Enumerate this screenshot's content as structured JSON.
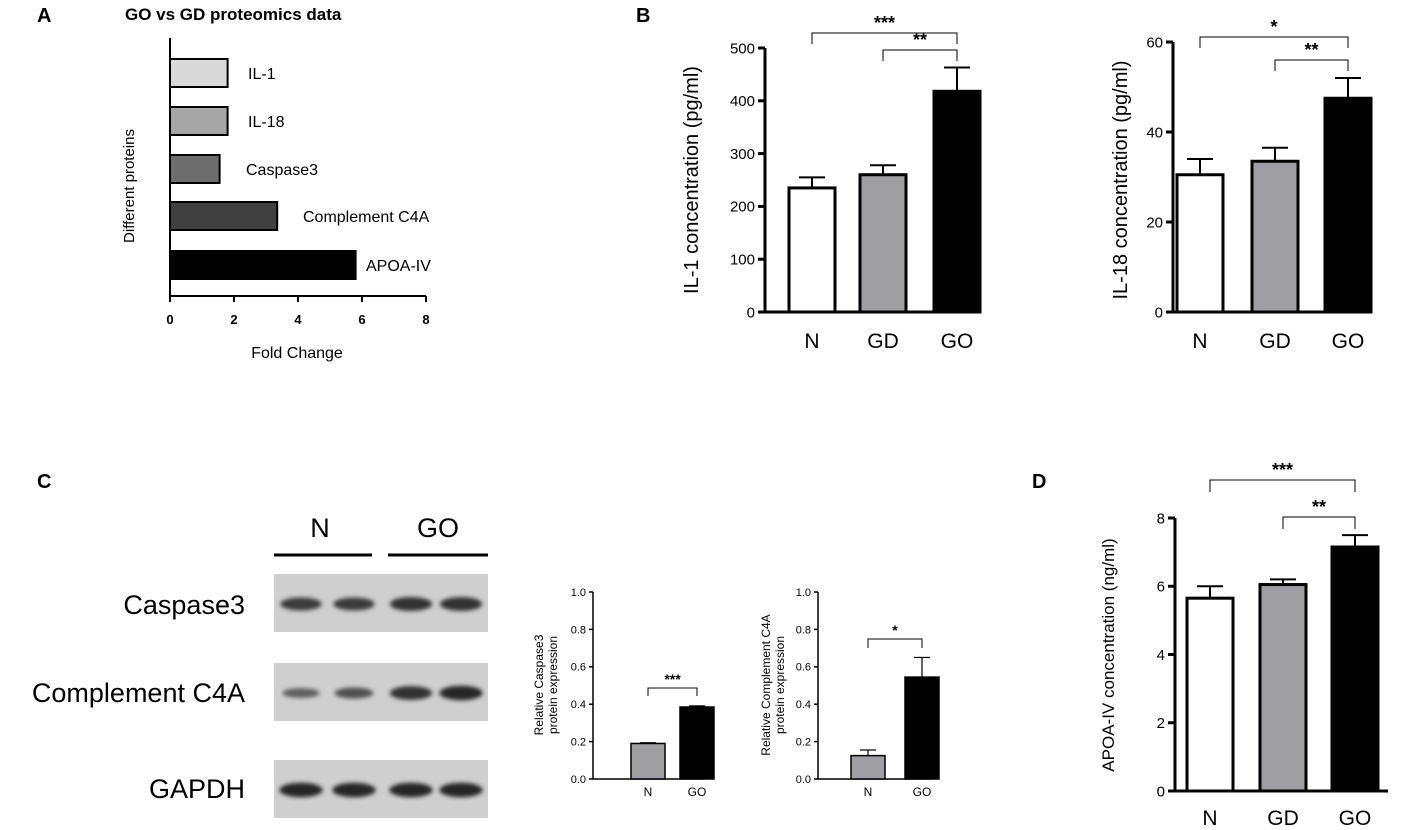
{
  "panels": {
    "A": "A",
    "B": "B",
    "C": "C",
    "D": "D"
  },
  "chart_data": [
    {
      "id": "A",
      "type": "bar",
      "orientation": "horizontal",
      "title": "GO vs GD proteomics data",
      "xlabel": "Fold Change",
      "ylabel": "Different proteins",
      "xlim": [
        0,
        8
      ],
      "xticks": [
        "0",
        "2",
        "4",
        "6",
        "8"
      ],
      "categories": [
        "IL-1",
        "IL-18",
        "Caspase3",
        "Complement C4A",
        "APOA-IV"
      ],
      "values": [
        1.8,
        1.8,
        1.55,
        3.35,
        5.8
      ],
      "colors": [
        "#d9d9d9",
        "#a6a6a6",
        "#6e6e6e",
        "#404040",
        "#000000"
      ]
    },
    {
      "id": "B1",
      "type": "bar",
      "ylabel": "IL-1 concentration (pg/ml)",
      "ylim": [
        0,
        500
      ],
      "yticks": [
        "0",
        "100",
        "200",
        "300",
        "400",
        "500"
      ],
      "categories": [
        "N",
        "GD",
        "GO"
      ],
      "values": [
        235,
        260,
        418
      ],
      "errors": [
        20,
        18,
        45
      ],
      "colors": [
        "#ffffff",
        "#9e9ea3",
        "#000000"
      ],
      "significance": [
        {
          "from": 0,
          "to": 2,
          "label": "***"
        },
        {
          "from": 1,
          "to": 2,
          "label": "**"
        }
      ]
    },
    {
      "id": "B2",
      "type": "bar",
      "ylabel": "IL-18 concentration (pg/ml)",
      "ylim": [
        0,
        60
      ],
      "yticks": [
        "0",
        "20",
        "40",
        "60"
      ],
      "categories": [
        "N",
        "GD",
        "GO"
      ],
      "values": [
        30.5,
        33.5,
        47.5
      ],
      "errors": [
        3.5,
        3,
        4.5
      ],
      "colors": [
        "#ffffff",
        "#9e9ea3",
        "#000000"
      ],
      "significance": [
        {
          "from": 0,
          "to": 2,
          "label": "*"
        },
        {
          "from": 1,
          "to": 2,
          "label": "**"
        }
      ]
    },
    {
      "id": "C1",
      "type": "bar",
      "ylabel": [
        "Relative Caspase3",
        "protein expression"
      ],
      "ylim": [
        0,
        1.0
      ],
      "yticks": [
        "0.0",
        "0.2",
        "0.4",
        "0.6",
        "0.8",
        "1.0"
      ],
      "categories": [
        "N",
        "GO"
      ],
      "values": [
        0.19,
        0.385
      ],
      "errors": [
        0.004,
        0.006
      ],
      "colors": [
        "#9e9ea3",
        "#000000"
      ],
      "significance": [
        {
          "from": 0,
          "to": 1,
          "label": "***"
        }
      ]
    },
    {
      "id": "C2",
      "type": "bar",
      "ylabel": [
        "Relative Complement C4A",
        "protein expression"
      ],
      "ylim": [
        0,
        1.0
      ],
      "yticks": [
        "0.0",
        "0.2",
        "0.4",
        "0.6",
        "0.8",
        "1.0"
      ],
      "categories": [
        "N",
        "GO"
      ],
      "values": [
        0.125,
        0.545
      ],
      "errors": [
        0.03,
        0.105
      ],
      "colors": [
        "#9e9ea3",
        "#000000"
      ],
      "significance": [
        {
          "from": 0,
          "to": 1,
          "label": "*"
        }
      ]
    },
    {
      "id": "D",
      "type": "bar",
      "ylabel": "APOA-IV concentration (ng/ml)",
      "ylim": [
        0,
        8
      ],
      "yticks": [
        "0",
        "2",
        "4",
        "6",
        "8"
      ],
      "categories": [
        "N",
        "GD",
        "GO"
      ],
      "values": [
        5.65,
        6.05,
        7.15
      ],
      "errors": [
        0.35,
        0.15,
        0.35
      ],
      "colors": [
        "#ffffff",
        "#9e9ea3",
        "#000000"
      ],
      "significance": [
        {
          "from": 0,
          "to": 2,
          "label": "***"
        },
        {
          "from": 1,
          "to": 2,
          "label": "**"
        }
      ]
    }
  ],
  "blot": {
    "groups": [
      "N",
      "GO"
    ],
    "rows": [
      "Caspase3",
      "Complement C4A",
      "GAPDH"
    ],
    "band_intensity": [
      [
        0.75,
        0.75,
        0.85,
        0.85
      ],
      [
        0.35,
        0.5,
        0.85,
        0.95
      ],
      [
        0.95,
        0.95,
        0.95,
        0.95
      ]
    ]
  }
}
